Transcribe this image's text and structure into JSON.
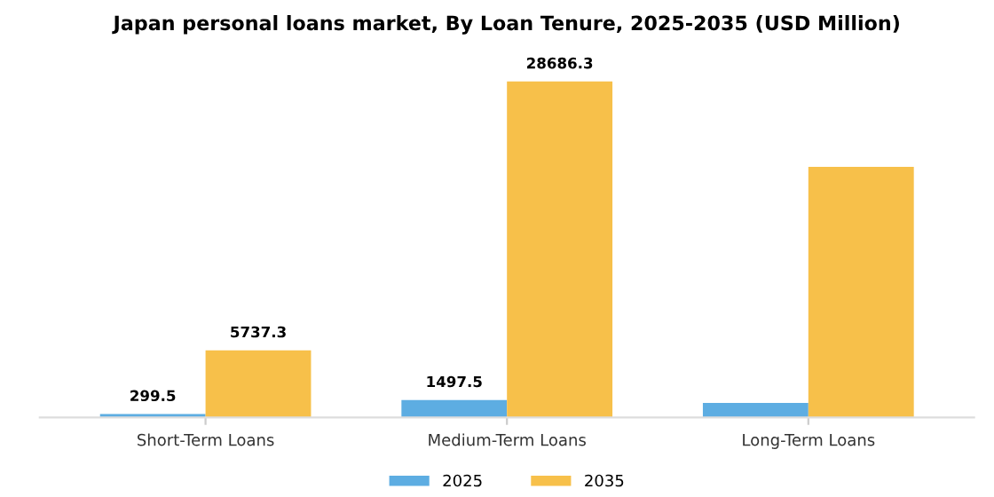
{
  "chart_data": {
    "type": "bar",
    "title": "Japan personal loans market, By Loan Tenure, 2025-2035 (USD Million)",
    "categories": [
      "Short-Term Loans",
      "Medium-Term Loans",
      "Long-Term Loans"
    ],
    "series": [
      {
        "name": "2025",
        "color": "#5dade2",
        "values": [
          299.5,
          1497.5,
          1250
        ],
        "value_labels": [
          "299.5",
          "1497.5",
          null
        ]
      },
      {
        "name": "2035",
        "color": "#f7c04a",
        "values": [
          5737.3,
          28686.3,
          21400
        ],
        "value_labels": [
          "5737.3",
          "28686.3",
          null
        ]
      }
    ],
    "legend": "bottom",
    "grid": false
  }
}
